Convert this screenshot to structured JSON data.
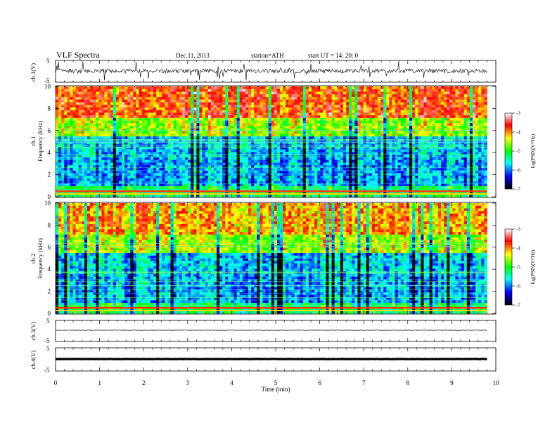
{
  "header": {
    "title": "VLF  Spectra",
    "date": "Dec.11, 2013",
    "station": "station=ATH",
    "start": "start  UT  =    14: 20: 0"
  },
  "chart_data": [
    {
      "type": "line",
      "panel": "ch1-waveform",
      "ylabel": "ch.1(V)",
      "ylim": [
        -5,
        5
      ],
      "yticks": [
        "5",
        "-5"
      ],
      "xlim": [
        0,
        10
      ]
    },
    {
      "type": "heatmap",
      "panel": "ch1-spectrogram",
      "ylabel": "ch.1\nFrequency (kHz)",
      "ylabel_lines": [
        "ch.1",
        "Frequency  (kHz)"
      ],
      "ylim": [
        0,
        10
      ],
      "yticks": [
        "0",
        "2",
        "4",
        "6",
        "8",
        "10"
      ],
      "xlim": [
        0,
        9.8
      ],
      "colorbar": {
        "label": "log(PSD)(V²/Hz)",
        "range": [
          -7,
          -3
        ],
        "ticks": [
          "-3",
          "-4",
          "-5",
          "-6",
          "-7"
        ],
        "colors": [
          "#ffffff",
          "#ff0000",
          "#ffff00",
          "#00ff00",
          "#00ffff",
          "#0000ff",
          "#000000"
        ]
      }
    },
    {
      "type": "heatmap",
      "panel": "ch2-spectrogram",
      "ylabel_lines": [
        "ch.2",
        "Frequency  (kHz)"
      ],
      "ylim": [
        0,
        10
      ],
      "yticks": [
        "0",
        "2",
        "4",
        "6",
        "8",
        "10"
      ],
      "xlim": [
        0,
        9.8
      ],
      "colorbar": {
        "label": "log(PSD)(V²/Hz)",
        "range": [
          -7,
          -3
        ],
        "ticks": [
          "-3",
          "-4",
          "-5",
          "-6",
          "-7"
        ]
      }
    },
    {
      "type": "line",
      "panel": "ch3-waveform",
      "ylabel": "ch.3(V)",
      "ylim": [
        -5,
        5
      ],
      "yticks": [
        "5",
        "-5"
      ]
    },
    {
      "type": "line",
      "panel": "ch4-waveform",
      "ylabel": "ch.4(V)",
      "ylim": [
        -5,
        5
      ],
      "yticks": [
        "5",
        "-5"
      ]
    }
  ],
  "xaxis": {
    "label": "Time  (min)",
    "ticks": [
      "0",
      "1",
      "2",
      "3",
      "4",
      "5",
      "6",
      "7",
      "8",
      "9",
      "10"
    ],
    "range": [
      0,
      10
    ]
  }
}
